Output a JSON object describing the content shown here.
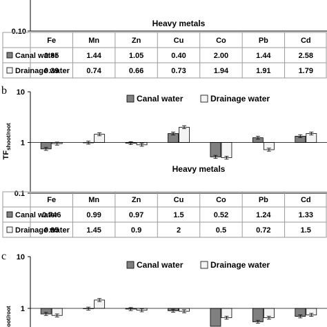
{
  "legend": {
    "canal": "Canal water",
    "drainage": "Drainage water"
  },
  "colors": {
    "canal": "#808080",
    "drainage": "#f4f4f4",
    "line": "#000000",
    "table_border": "#9a9a9a"
  },
  "chart_data": [
    {
      "panel": "a",
      "type": "bar",
      "xlabel": "Heavy metals",
      "yscale": "log",
      "ylim": [
        0.1,
        10
      ],
      "yticks_visible": [
        "0.10"
      ],
      "categories": [
        "Fe",
        "Mn",
        "Zn",
        "Cu",
        "Co",
        "Pb",
        "Cd"
      ],
      "series": [
        {
          "name": "Canal water",
          "values": [
            0.85,
            1.44,
            1.05,
            0.4,
            2.0,
            1.44,
            2.58
          ]
        },
        {
          "name": "Drainage water",
          "values": [
            0.39,
            0.74,
            0.66,
            0.73,
            1.94,
            1.91,
            1.79
          ]
        }
      ],
      "table": [
        [
          "0.85",
          "1.44",
          "1.05",
          "0.40",
          "2.00",
          "1.44",
          "2.58"
        ],
        [
          "0.39",
          "0.74",
          "0.66",
          "0.73",
          "1.94",
          "1.91",
          "1.79"
        ]
      ]
    },
    {
      "panel": "b",
      "type": "bar",
      "ylabel": "TF",
      "ylabel_sub": "shoot/root",
      "xlabel": "Heavy metals",
      "yscale": "log",
      "ylim": [
        0.1,
        10
      ],
      "yticks": [
        "10",
        "1",
        "0.1"
      ],
      "legend_position": "top",
      "categories": [
        "Fe",
        "Mn",
        "Zn",
        "Cu",
        "Co",
        "Pb",
        "Cd"
      ],
      "series": [
        {
          "name": "Canal water",
          "values": [
            0.746,
            0.99,
            0.97,
            1.5,
            0.52,
            1.24,
            1.33
          ]
        },
        {
          "name": "Drainage water",
          "values": [
            0.95,
            1.45,
            0.9,
            2,
            0.5,
            0.72,
            1.5
          ]
        }
      ],
      "table": [
        [
          "0.746",
          "0.99",
          "0.97",
          "1.5",
          "0.52",
          "1.24",
          "1.33"
        ],
        [
          "0.95",
          "1.45",
          "0.9",
          "2",
          "0.5",
          "0.72",
          "1.5"
        ]
      ]
    },
    {
      "panel": "c",
      "type": "bar",
      "ylabel": "TF",
      "ylabel_sub": "shoot/root",
      "yscale": "log",
      "ylim": [
        0.1,
        10
      ],
      "yticks": [
        "10",
        "1"
      ],
      "legend_position": "top",
      "categories": [
        "Fe",
        "Mn",
        "Zn",
        "Cu",
        "Co",
        "Pb",
        "Cd"
      ],
      "series": [
        {
          "name": "Canal water",
          "values": [
            0.78,
            0.99,
            0.97,
            0.9,
            0.45,
            0.55,
            0.7
          ]
        },
        {
          "name": "Drainage water",
          "values": [
            0.73,
            1.45,
            0.92,
            0.88,
            0.66,
            0.66,
            0.75
          ]
        }
      ]
    }
  ]
}
